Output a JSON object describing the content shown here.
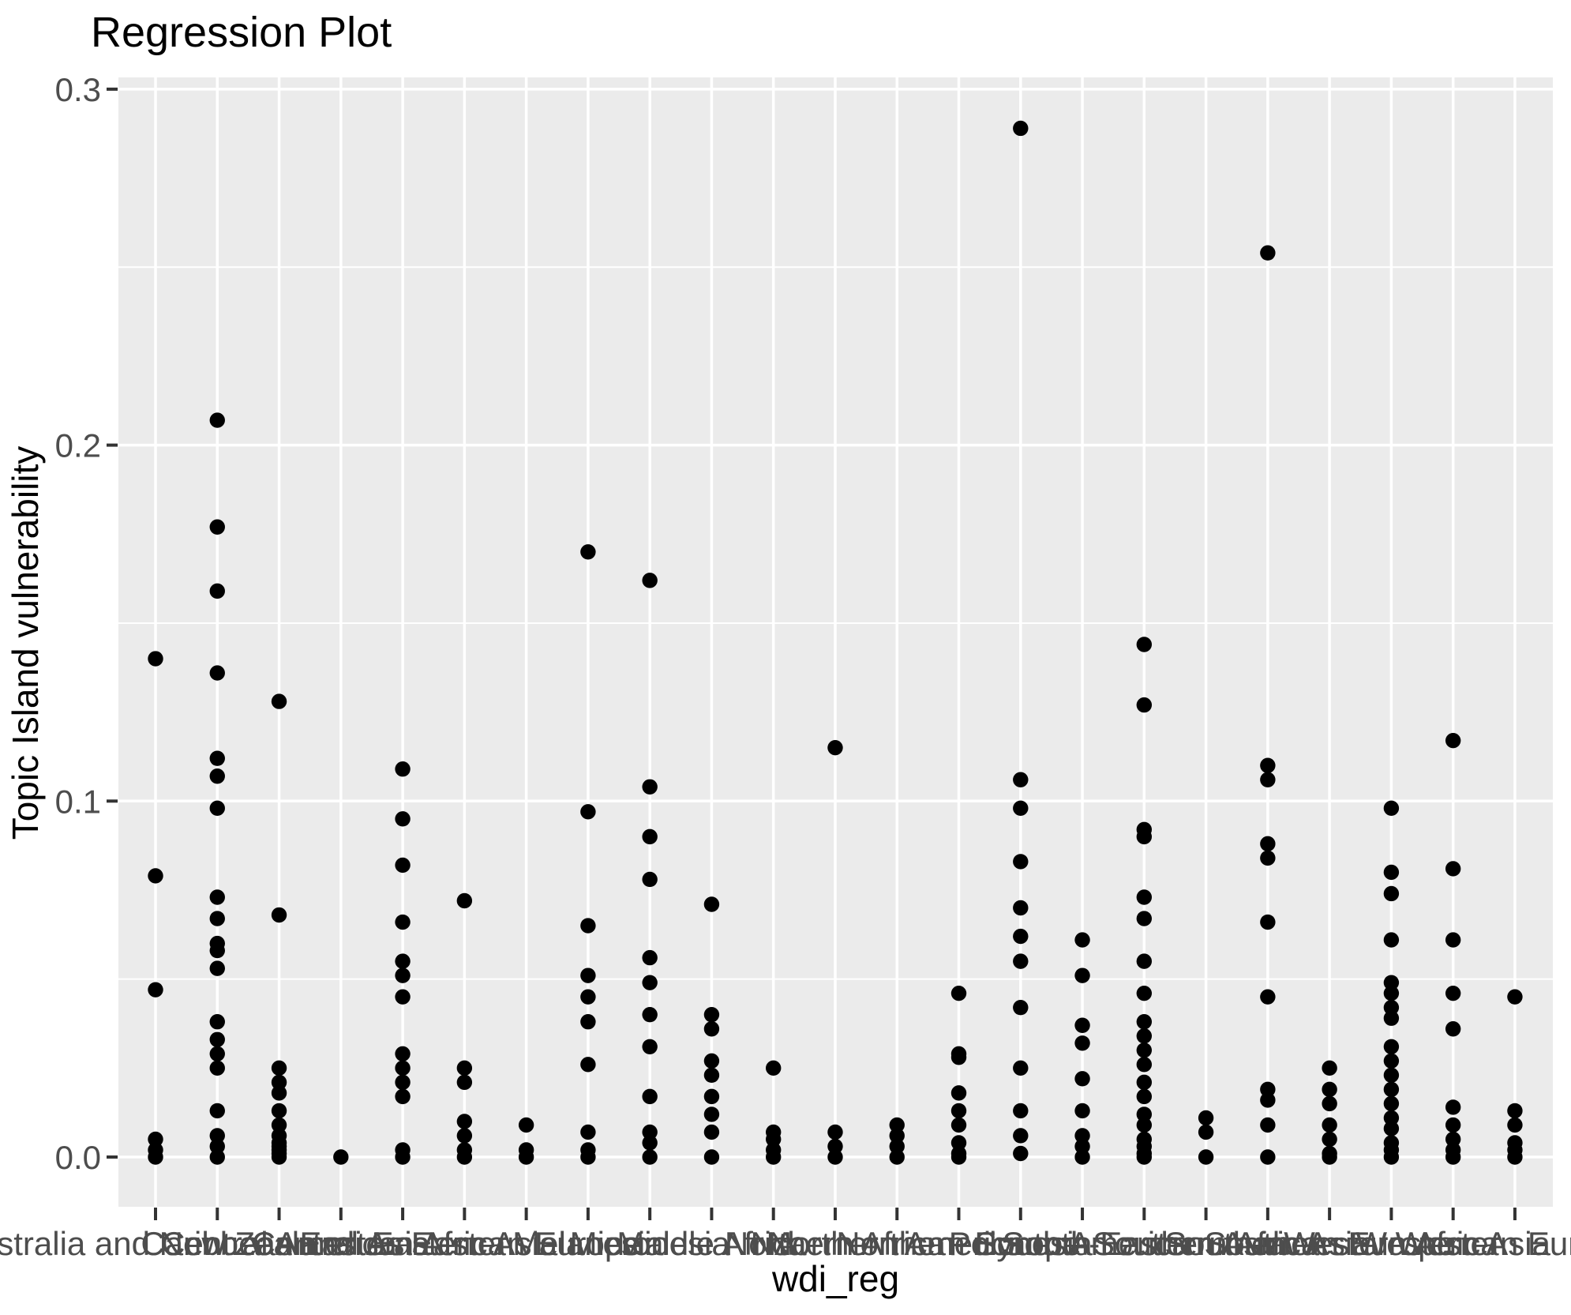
{
  "figure": {
    "background": "#FFFFFF"
  },
  "chart_data": {
    "type": "scatter",
    "subtype": "categorical-strip",
    "title": "Regression Plot",
    "xlabel": "wdi_reg",
    "ylabel": "Topic Island vulnerability",
    "legend": false,
    "grid": true,
    "panel_color": "#EBEBEB",
    "grid_color": "#FFFFFF",
    "point_color": "#000000",
    "tick_label_color": "#4D4D4D",
    "tick_mark_color": "#333333",
    "title_color": "#000000",
    "ylim": [
      -0.0145,
      0.3035
    ],
    "yticks": [
      0.0,
      0.1,
      0.2,
      0.3
    ],
    "ytick_labels": [
      "0.0",
      "0.1",
      "0.2",
      "0.3"
    ],
    "minor_yticks": [
      0.05,
      0.15,
      0.25
    ],
    "categories": [
      "Australia and New Zealand",
      "Caribbean",
      "Central America",
      "Central Asia",
      "Eastern Africa",
      "Eastern Asia",
      "Eastern Europe",
      "Melanesia",
      "Micronesia",
      "Middle Africa",
      "NA",
      "Northern Africa",
      "Northern America",
      "Northern Europe",
      "Polynesia",
      "South America",
      "South-Eastern Asia",
      "Southern Africa",
      "Southern Asia",
      "Southern Europe",
      "Western Africa",
      "Western Asia",
      "Western Europe"
    ],
    "values_by_category": [
      [
        0.14,
        0.079,
        0.047,
        0.005,
        0.002,
        0.0
      ],
      [
        0.207,
        0.177,
        0.159,
        0.136,
        0.112,
        0.107,
        0.098,
        0.073,
        0.067,
        0.06,
        0.058,
        0.053,
        0.038,
        0.033,
        0.029,
        0.025,
        0.013,
        0.006,
        0.003,
        0.0
      ],
      [
        0.128,
        0.068,
        0.025,
        0.021,
        0.018,
        0.013,
        0.009,
        0.006,
        0.004,
        0.003,
        0.002,
        0.001,
        0.0
      ],
      [
        0.0
      ],
      [
        0.109,
        0.095,
        0.082,
        0.066,
        0.055,
        0.051,
        0.045,
        0.029,
        0.025,
        0.021,
        0.017,
        0.002,
        0.0
      ],
      [
        0.072,
        0.025,
        0.021,
        0.01,
        0.006,
        0.002,
        0.0
      ],
      [
        0.009,
        0.002,
        0.0
      ],
      [
        0.17,
        0.097,
        0.065,
        0.051,
        0.045,
        0.038,
        0.026,
        0.007,
        0.002,
        0.0
      ],
      [
        0.162,
        0.104,
        0.09,
        0.078,
        0.056,
        0.049,
        0.04,
        0.031,
        0.017,
        0.007,
        0.004,
        0.0
      ],
      [
        0.071,
        0.04,
        0.036,
        0.027,
        0.023,
        0.017,
        0.012,
        0.007,
        0.0
      ],
      [
        0.025,
        0.007,
        0.005,
        0.002,
        0.0
      ],
      [
        0.115,
        0.007,
        0.003,
        0.0
      ],
      [
        0.009,
        0.006,
        0.003,
        0.0
      ],
      [
        0.046,
        0.029,
        0.028,
        0.018,
        0.013,
        0.009,
        0.004,
        0.001,
        0.0
      ],
      [
        0.289,
        0.106,
        0.098,
        0.083,
        0.07,
        0.062,
        0.055,
        0.042,
        0.025,
        0.013,
        0.006,
        0.001
      ],
      [
        0.061,
        0.051,
        0.037,
        0.032,
        0.022,
        0.013,
        0.006,
        0.003,
        0.0
      ],
      [
        0.144,
        0.127,
        0.092,
        0.09,
        0.073,
        0.067,
        0.055,
        0.046,
        0.038,
        0.034,
        0.03,
        0.026,
        0.021,
        0.017,
        0.012,
        0.009,
        0.005,
        0.003,
        0.001,
        0.0
      ],
      [
        0.011,
        0.007,
        0.0
      ],
      [
        0.254,
        0.11,
        0.106,
        0.088,
        0.084,
        0.066,
        0.045,
        0.019,
        0.016,
        0.009,
        0.0
      ],
      [
        0.025,
        0.019,
        0.015,
        0.009,
        0.005,
        0.001,
        0.0
      ],
      [
        0.098,
        0.08,
        0.074,
        0.061,
        0.049,
        0.046,
        0.042,
        0.039,
        0.031,
        0.027,
        0.023,
        0.019,
        0.015,
        0.011,
        0.008,
        0.004,
        0.002,
        0.0
      ],
      [
        0.117,
        0.081,
        0.061,
        0.046,
        0.036,
        0.014,
        0.009,
        0.005,
        0.002,
        0.0
      ],
      [
        0.045,
        0.013,
        0.009,
        0.004,
        0.002,
        0.0
      ]
    ]
  }
}
